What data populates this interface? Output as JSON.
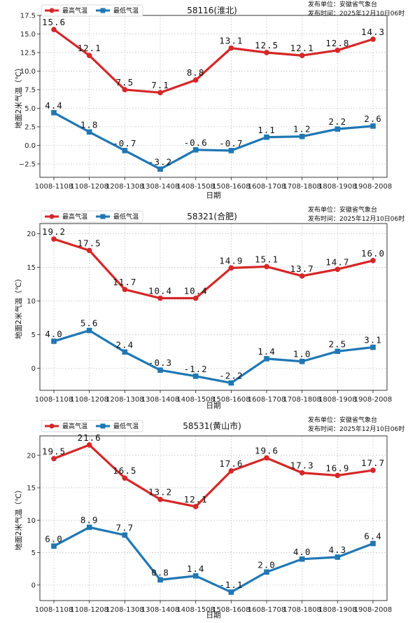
{
  "colors": {
    "max_series": "#d62728",
    "min_series": "#1f77b4",
    "grid": "#c8c8c8"
  },
  "legend": {
    "max_label": "最高气温",
    "min_label": "最低气温"
  },
  "publisher": {
    "unit_line": "发布单位：安徽省气象台",
    "time_line": "发布时间：2025年12月10日06时"
  },
  "chart_data": [
    {
      "type": "line",
      "title": "58116(淮北)",
      "xlabel": "日期",
      "ylabel": "地面2米气温（℃）",
      "categories": [
        "1008-1108",
        "1108-1208",
        "1208-1308",
        "1308-1408",
        "1408-1508",
        "1508-1608",
        "1608-1708",
        "1708-1808",
        "1808-1908",
        "1908-2008"
      ],
      "series": [
        {
          "name": "最高气温",
          "values": [
            15.6,
            12.1,
            7.5,
            7.1,
            8.8,
            13.1,
            12.5,
            12.1,
            12.8,
            14.3
          ]
        },
        {
          "name": "最低气温",
          "values": [
            4.4,
            1.8,
            -0.7,
            -3.2,
            -0.6,
            -0.7,
            1.1,
            1.2,
            2.2,
            2.6
          ]
        }
      ],
      "ylim": [
        -4.3,
        17.5
      ],
      "yticks": [
        -2.5,
        0.0,
        2.5,
        5.0,
        7.5,
        10.0,
        12.5,
        15.0,
        17.5
      ],
      "ytick_labels": [
        "−2.5",
        "0.0",
        "2.5",
        "5.0",
        "7.5",
        "10.0",
        "12.5",
        "15.0",
        "17.5"
      ],
      "grid": true,
      "legend_position": "top-left"
    },
    {
      "type": "line",
      "title": "58321(合肥)",
      "xlabel": "日期",
      "ylabel": "地面2米气温（℃）",
      "categories": [
        "1008-1108",
        "1108-1208",
        "1208-1308",
        "1308-1408",
        "1408-1508",
        "1508-1608",
        "1608-1708",
        "1708-1808",
        "1808-1908",
        "1908-2008"
      ],
      "series": [
        {
          "name": "最高气温",
          "values": [
            19.2,
            17.5,
            11.7,
            10.4,
            10.4,
            14.9,
            15.1,
            13.7,
            14.7,
            16.0
          ]
        },
        {
          "name": "最低气温",
          "values": [
            4.0,
            5.6,
            2.4,
            -0.3,
            -1.2,
            -2.2,
            1.4,
            1.0,
            2.5,
            3.1
          ]
        }
      ],
      "ylim": [
        -3.3,
        21.5
      ],
      "yticks": [
        0,
        5,
        10,
        15,
        20
      ],
      "ytick_labels": [
        "0",
        "5",
        "10",
        "15",
        "20"
      ],
      "grid": true,
      "legend_position": "top-left"
    },
    {
      "type": "line",
      "title": "58531(黄山市)",
      "xlabel": "日期",
      "ylabel": "地面2米气温（℃）",
      "categories": [
        "1008-1108",
        "1108-1208",
        "1208-1308",
        "1308-1408",
        "1408-1508",
        "1508-1608",
        "1608-1708",
        "1708-1808",
        "1808-1908",
        "1908-2008"
      ],
      "series": [
        {
          "name": "最高气温",
          "values": [
            19.5,
            21.6,
            16.5,
            13.2,
            12.1,
            17.6,
            19.6,
            17.3,
            16.9,
            17.7
          ]
        },
        {
          "name": "最低气温",
          "values": [
            6.0,
            8.9,
            7.7,
            0.8,
            1.4,
            -1.1,
            2.0,
            4.0,
            4.3,
            6.4
          ]
        }
      ],
      "ylim": [
        -2.4,
        23.0
      ],
      "yticks": [
        0,
        5,
        10,
        15,
        20
      ],
      "ytick_labels": [
        "0",
        "5",
        "10",
        "15",
        "20"
      ],
      "grid": true,
      "legend_position": "top-left"
    }
  ]
}
